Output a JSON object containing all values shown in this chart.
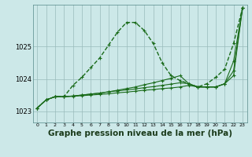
{
  "background_color": "#cce8e8",
  "plot_bg_color": "#cce8e8",
  "line_color": "#1a6b1a",
  "grid_color": "#99bbbb",
  "xlabel": "Graphe pression niveau de la mer (hPa)",
  "xlabel_fontsize": 7.5,
  "xtick_labels": [
    "0",
    "1",
    "2",
    "3",
    "4",
    "5",
    "6",
    "7",
    "8",
    "9",
    "10",
    "11",
    "12",
    "13",
    "14",
    "15",
    "16",
    "17",
    "18",
    "19",
    "20",
    "21",
    "22",
    "23"
  ],
  "yticks": [
    1023,
    1024,
    1025
  ],
  "ylim": [
    1022.65,
    1026.3
  ],
  "xlim": [
    -0.5,
    23.5
  ],
  "series": [
    {
      "x": [
        0,
        1,
        2,
        3,
        4,
        5,
        6,
        7,
        8,
        9,
        10,
        11,
        12,
        13,
        14,
        15,
        16,
        17,
        18,
        19,
        20,
        21,
        22,
        23
      ],
      "y": [
        1023.1,
        1023.35,
        1023.45,
        1023.45,
        1023.8,
        1024.05,
        1024.35,
        1024.65,
        1025.05,
        1025.45,
        1025.75,
        1025.75,
        1025.5,
        1025.1,
        1024.5,
        1024.1,
        1023.95,
        1023.85,
        1023.75,
        1023.85,
        1024.05,
        1024.3,
        1025.1,
        1026.2
      ],
      "linestyle": "--",
      "linewidth": 1.0,
      "marker": "+"
    },
    {
      "x": [
        0,
        1,
        2,
        3,
        4,
        5,
        6,
        7,
        8,
        9,
        10,
        11,
        12,
        13,
        14,
        15,
        16,
        17,
        18,
        19,
        20,
        21,
        22,
        23
      ],
      "y": [
        1023.1,
        1023.35,
        1023.45,
        1023.45,
        1023.47,
        1023.5,
        1023.53,
        1023.56,
        1023.6,
        1023.65,
        1023.7,
        1023.75,
        1023.82,
        1023.88,
        1023.95,
        1024.02,
        1024.1,
        1023.85,
        1023.75,
        1023.75,
        1023.75,
        1023.85,
        1024.1,
        1026.2
      ],
      "linestyle": "-",
      "linewidth": 0.8,
      "marker": "+"
    },
    {
      "x": [
        0,
        1,
        2,
        3,
        4,
        5,
        6,
        7,
        8,
        9,
        10,
        11,
        12,
        13,
        14,
        15,
        16,
        17,
        18,
        19,
        20,
        21,
        22,
        23
      ],
      "y": [
        1023.1,
        1023.35,
        1023.45,
        1023.45,
        1023.47,
        1023.5,
        1023.53,
        1023.56,
        1023.6,
        1023.63,
        1023.66,
        1023.69,
        1023.73,
        1023.76,
        1023.8,
        1023.84,
        1023.88,
        1023.85,
        1023.75,
        1023.75,
        1023.75,
        1023.85,
        1024.55,
        1026.2
      ],
      "linestyle": "-",
      "linewidth": 0.8,
      "marker": "+"
    },
    {
      "x": [
        0,
        1,
        2,
        3,
        4,
        5,
        6,
        7,
        8,
        9,
        10,
        11,
        12,
        13,
        14,
        15,
        16,
        17,
        18,
        19,
        20,
        21,
        22,
        23
      ],
      "y": [
        1023.1,
        1023.35,
        1023.45,
        1023.45,
        1023.46,
        1023.48,
        1023.5,
        1023.52,
        1023.54,
        1023.57,
        1023.59,
        1023.62,
        1023.65,
        1023.67,
        1023.7,
        1023.72,
        1023.75,
        1023.8,
        1023.75,
        1023.75,
        1023.75,
        1023.85,
        1024.25,
        1026.2
      ],
      "linestyle": "-",
      "linewidth": 0.8,
      "marker": "+"
    }
  ]
}
